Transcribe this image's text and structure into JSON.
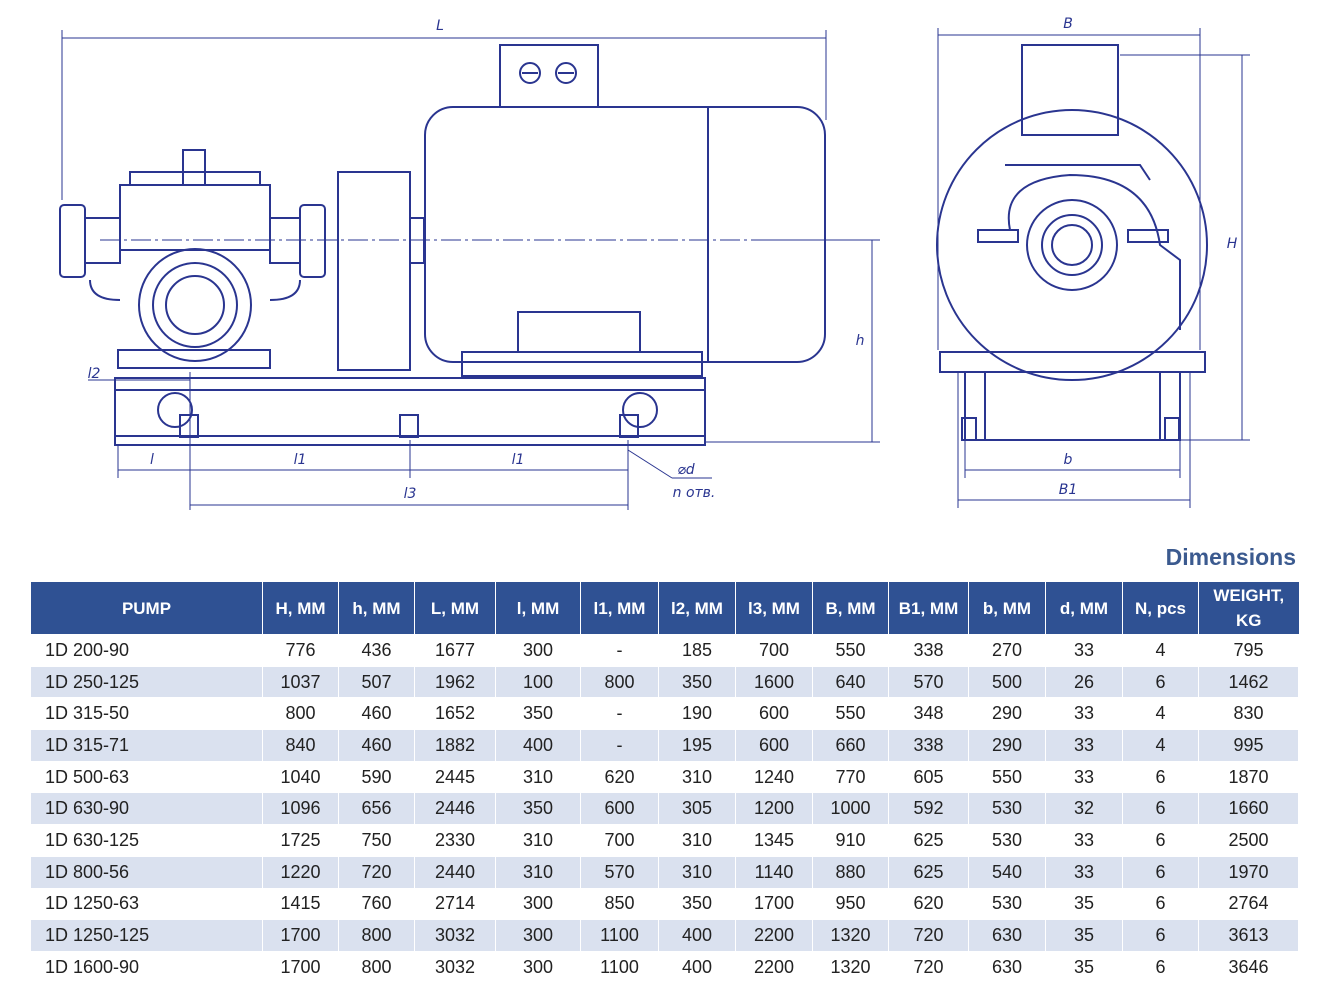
{
  "drawing": {
    "labels": {
      "L": "L",
      "l2": "l2",
      "h": "h",
      "l": "l",
      "l1a": "l1",
      "l1b": "l1",
      "l3": "l3",
      "d": "⌀d",
      "n": "n отв.",
      "B": "B",
      "H": "H",
      "b": "b",
      "B1": "B1"
    }
  },
  "title": "Dimensions",
  "table": {
    "header": [
      "PUMP",
      "H, MM",
      "h, MM",
      "L, MM",
      "l, MM",
      "l1, MM",
      "l2, MM",
      "l3, MM",
      "B, MM",
      "B1, MM",
      "b, MM",
      "d, MM",
      "N, pcs",
      "WEIGHT, KG"
    ],
    "rows": [
      [
        "1D 200-90",
        776,
        436,
        1677,
        300,
        "-",
        185,
        700,
        550,
        338,
        270,
        33,
        4,
        795
      ],
      [
        "1D 250-125",
        1037,
        507,
        1962,
        100,
        800,
        350,
        1600,
        640,
        570,
        500,
        26,
        6,
        1462
      ],
      [
        "1D 315-50",
        800,
        460,
        1652,
        350,
        "-",
        190,
        600,
        550,
        348,
        290,
        33,
        4,
        830
      ],
      [
        "1D 315-71",
        840,
        460,
        1882,
        400,
        "-",
        195,
        600,
        660,
        338,
        290,
        33,
        4,
        995
      ],
      [
        "1D 500-63",
        1040,
        590,
        2445,
        310,
        620,
        310,
        1240,
        770,
        605,
        550,
        33,
        6,
        1870
      ],
      [
        "1D 630-90",
        1096,
        656,
        2446,
        350,
        600,
        305,
        1200,
        1000,
        592,
        530,
        32,
        6,
        1660
      ],
      [
        "1D 630-125",
        1725,
        750,
        2330,
        310,
        700,
        310,
        1345,
        910,
        625,
        530,
        33,
        6,
        2500
      ],
      [
        "1D 800-56",
        1220,
        720,
        2440,
        310,
        570,
        310,
        1140,
        880,
        625,
        540,
        33,
        6,
        1970
      ],
      [
        "1D 1250-63",
        1415,
        760,
        2714,
        300,
        850,
        350,
        1700,
        950,
        620,
        530,
        35,
        6,
        2764
      ],
      [
        "1D 1250-125",
        1700,
        800,
        3032,
        300,
        1100,
        400,
        2200,
        1320,
        720,
        630,
        35,
        6,
        3613
      ],
      [
        "1D 1600-90",
        1700,
        800,
        3032,
        300,
        1100,
        400,
        2200,
        1320,
        720,
        630,
        35,
        6,
        3646
      ]
    ]
  }
}
